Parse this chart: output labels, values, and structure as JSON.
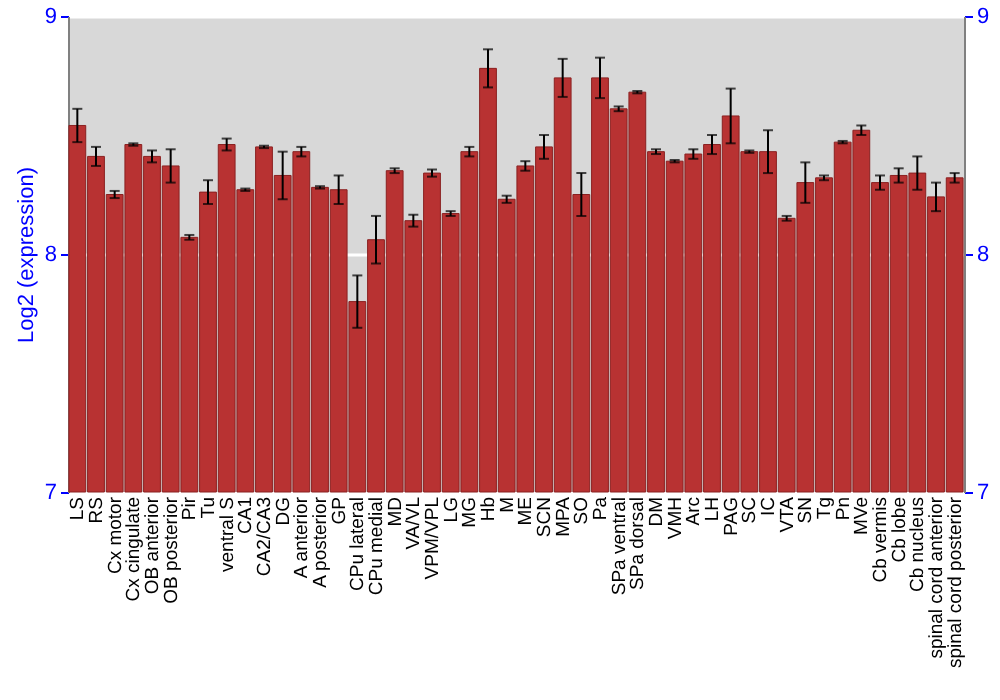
{
  "chart_data": {
    "type": "bar",
    "ylabel": "Log2 (expression)",
    "categories": [
      "LS",
      "RS",
      "Cx motor",
      "Cx cingulate",
      "OB anterior",
      "OB posterior",
      "Pir",
      "Tu",
      "ventral S",
      "CA1",
      "CA2/CA3",
      "DG",
      "A anterior",
      "A posterior",
      "GP",
      "CPu lateral",
      "CPu medial",
      "MD",
      "VA/VL",
      "VPM/VPL",
      "LG",
      "MG",
      "Hb",
      "M",
      "ME",
      "SCN",
      "MPA",
      "SO",
      "Pa",
      "SPa ventral",
      "SPa dorsal",
      "DM",
      "VMH",
      "Arc",
      "LH",
      "PAG",
      "SC",
      "IC",
      "VTA",
      "SN",
      "Tg",
      "Pn",
      "MVe",
      "Cb vermis",
      "Cb lobe",
      "Cb nucleus",
      "spinal cord anterior",
      "spinal cord posterior"
    ],
    "series": [
      {
        "color": "#b83232",
        "values": [
          8.54,
          8.41,
          8.25,
          8.46,
          8.41,
          8.37,
          8.07,
          8.26,
          8.46,
          8.27,
          8.45,
          8.33,
          8.43,
          8.28,
          8.27,
          7.8,
          8.06,
          8.35,
          8.14,
          8.34,
          8.17,
          8.43,
          8.78,
          8.23,
          8.37,
          8.45,
          8.74,
          8.25,
          8.74,
          8.61,
          8.68,
          8.43,
          8.39,
          8.42,
          8.46,
          8.58,
          8.43,
          8.43,
          8.15,
          8.3,
          8.32,
          8.47,
          8.52,
          8.3,
          8.33,
          8.34,
          8.24,
          8.32
        ],
        "errors": [
          0.07,
          0.04,
          0.015,
          0.005,
          0.025,
          0.07,
          0.01,
          0.05,
          0.025,
          0.005,
          0.005,
          0.1,
          0.02,
          0.005,
          0.06,
          0.11,
          0.1,
          0.01,
          0.025,
          0.015,
          0.01,
          0.02,
          0.08,
          0.015,
          0.02,
          0.05,
          0.08,
          0.09,
          0.085,
          0.01,
          0.005,
          0.01,
          0.005,
          0.02,
          0.04,
          0.115,
          0.005,
          0.09,
          0.01,
          0.085,
          0.01,
          0.005,
          0.02,
          0.03,
          0.03,
          0.07,
          0.06,
          0.02
        ]
      }
    ],
    "ylim": [
      7,
      9
    ],
    "yticks": [
      7,
      8,
      9
    ],
    "y2lim": [
      7,
      9
    ],
    "y2ticks": [
      7,
      8,
      9
    ],
    "grid": "y"
  }
}
